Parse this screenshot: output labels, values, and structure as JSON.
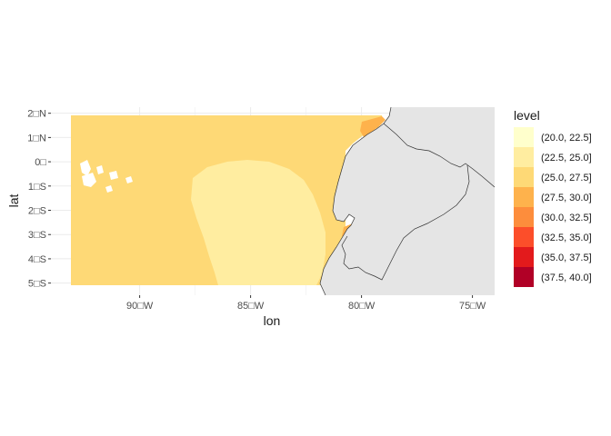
{
  "chart_data": {
    "type": "heatmap",
    "title": "",
    "xlabel": "lon",
    "ylabel": "lat",
    "xlim": [
      -94.0,
      -74.0
    ],
    "ylim": [
      -5.5,
      2.25
    ],
    "x_ticks": [
      {
        "value": -90,
        "label": "90□W"
      },
      {
        "value": -85,
        "label": "85□W"
      },
      {
        "value": -80,
        "label": "80□W"
      },
      {
        "value": -75,
        "label": "75□W"
      }
    ],
    "y_ticks": [
      {
        "value": 2,
        "label": "2□N"
      },
      {
        "value": 1,
        "label": "1□N"
      },
      {
        "value": 0,
        "label": "0□"
      },
      {
        "value": -1,
        "label": "1□S"
      },
      {
        "value": -2,
        "label": "2□S"
      },
      {
        "value": -3,
        "label": "3□S"
      },
      {
        "value": -4,
        "label": "4□S"
      },
      {
        "value": -5,
        "label": "5□S"
      }
    ],
    "grid": true,
    "legend": {
      "title": "level",
      "position": "right",
      "levels": [
        {
          "label": "(20.0, 22.5]",
          "color": "#ffffcc"
        },
        {
          "label": "(22.5, 25.0]",
          "color": "#ffeda0"
        },
        {
          "label": "(25.0, 27.5]",
          "color": "#fed976"
        },
        {
          "label": "(27.5, 30.0]",
          "color": "#feb24c"
        },
        {
          "label": "(30.0, 32.5]",
          "color": "#fd8d3c"
        },
        {
          "label": "(32.5, 35.0]",
          "color": "#fc4e2a"
        },
        {
          "label": "(35.0, 37.5]",
          "color": "#e31a1c"
        },
        {
          "label": "(37.5, 40.0]",
          "color": "#b10026"
        }
      ]
    },
    "colors": {
      "land": "#e5e5e5",
      "coastline": "#333333",
      "panel_background": "#ffffff",
      "gridline": "#ebebeb"
    }
  }
}
